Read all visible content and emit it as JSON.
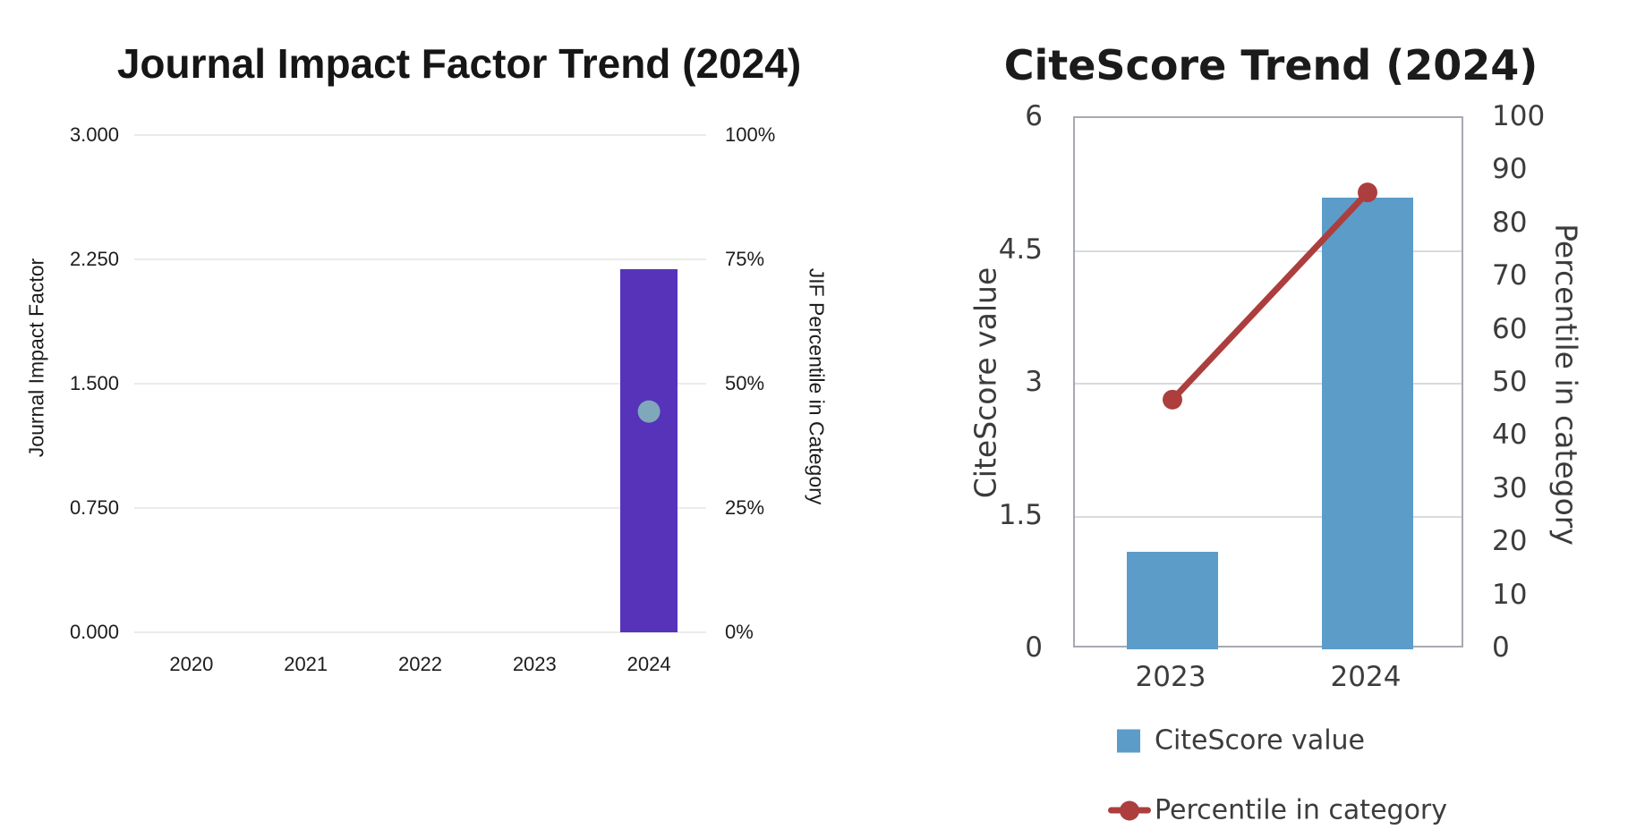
{
  "page": {
    "background": "#ffffff"
  },
  "chart_data": [
    {
      "type": "bar",
      "title": "Journal Impact Factor Trend (2024)",
      "ylabel_left": "Journal Impact Factor",
      "ylabel_right": "JIF Percentile in Category",
      "categories": [
        "2020",
        "2021",
        "2022",
        "2023",
        "2024"
      ],
      "axis_left": {
        "min": 0,
        "max": 3,
        "ticks": [
          {
            "label": "3.000",
            "v": 3.0
          },
          {
            "label": "2.250",
            "v": 2.25
          },
          {
            "label": "1.500",
            "v": 1.5
          },
          {
            "label": "0.750",
            "v": 0.75
          },
          {
            "label": "0.000",
            "v": 0.0
          }
        ]
      },
      "axis_right": {
        "min": 0,
        "max": 100,
        "ticks": [
          {
            "label": "100%",
            "v": 100
          },
          {
            "label": "75%",
            "v": 75
          },
          {
            "label": "50%",
            "v": 50
          },
          {
            "label": "25%",
            "v": 25
          },
          {
            "label": "0%",
            "v": 0
          }
        ]
      },
      "grid": "horizontal",
      "legend": [],
      "series": [
        {
          "name": "Journal Impact Factor",
          "kind": "bar",
          "axis": "left",
          "color": "#5733B9",
          "values": [
            null,
            null,
            null,
            null,
            2.19
          ]
        },
        {
          "name": "JIF Percentile in Category",
          "kind": "dot",
          "axis": "right",
          "color": "#7FA9BA",
          "values": [
            null,
            null,
            null,
            null,
            44.4
          ]
        }
      ]
    },
    {
      "type": "bar+line",
      "title": "CiteScore Trend (2024)",
      "ylabel_left": "CiteScore value",
      "ylabel_right": "Percentile in category",
      "categories": [
        "2023",
        "2024"
      ],
      "axis_left": {
        "min": 0,
        "max": 6,
        "ticks": [
          {
            "label": "6",
            "v": 6
          },
          {
            "label": "4.5",
            "v": 4.5
          },
          {
            "label": "3",
            "v": 3
          },
          {
            "label": "1.5",
            "v": 1.5
          },
          {
            "label": "0",
            "v": 0
          }
        ]
      },
      "axis_right": {
        "min": 0,
        "max": 100,
        "ticks": [
          {
            "label": "100",
            "v": 100
          },
          {
            "label": "90",
            "v": 90
          },
          {
            "label": "80",
            "v": 80
          },
          {
            "label": "70",
            "v": 70
          },
          {
            "label": "60",
            "v": 60
          },
          {
            "label": "50",
            "v": 50
          },
          {
            "label": "40",
            "v": 40
          },
          {
            "label": "30",
            "v": 30
          },
          {
            "label": "20",
            "v": 20
          },
          {
            "label": "10",
            "v": 10
          },
          {
            "label": "0",
            "v": 0
          }
        ]
      },
      "grid": "horizontal-inner",
      "legend": [
        {
          "label": "CiteScore value",
          "marker": "square",
          "color": "#5B9CC9"
        },
        {
          "label": "Percentile in category",
          "marker": "line-dot",
          "color": "#AC3E3E"
        }
      ],
      "series": [
        {
          "name": "CiteScore value",
          "kind": "bar",
          "axis": "left",
          "color": "#5B9CC9",
          "values": [
            1.1,
            5.1
          ]
        },
        {
          "name": "Percentile in category",
          "kind": "line",
          "axis": "right",
          "color": "#AC3E3E",
          "values": [
            47,
            86
          ]
        }
      ]
    }
  ]
}
